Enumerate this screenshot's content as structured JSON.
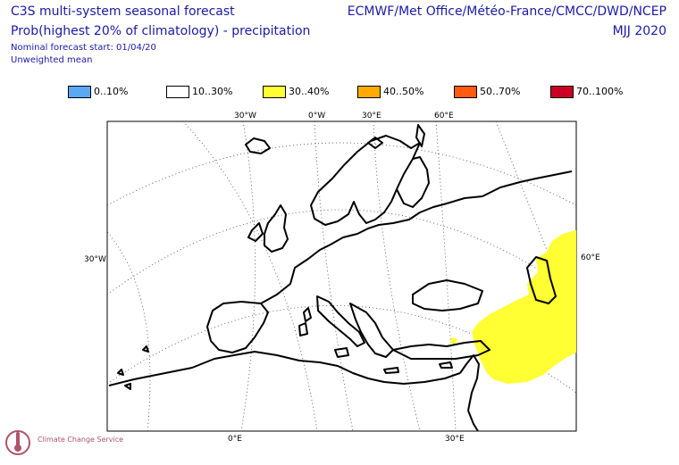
{
  "header": {
    "title_line1": "C3S multi-system seasonal forecast",
    "title_line2": "Prob(highest 20% of climatology) - precipitation",
    "nominal_start": "Nominal forecast start: 01/04/20",
    "mean_type": "Unweighted mean",
    "providers": "ECMWF/Met Office/Météo-France/CMCC/DWD/NCEP",
    "period": "MJJ 2020"
  },
  "legend": [
    {
      "label": "0..10%",
      "color": "#5aa9f5"
    },
    {
      "label": "10..30%",
      "color": "#ffffff"
    },
    {
      "label": "30..40%",
      "color": "#ffff33"
    },
    {
      "label": "40..50%",
      "color": "#ffaa00"
    },
    {
      "label": "50..70%",
      "color": "#ff5a10"
    },
    {
      "label": "70..100%",
      "color": "#cc0022"
    }
  ],
  "axes": {
    "top_labels": [
      "30°W",
      "0°W",
      "30°E",
      "60°E"
    ],
    "bottom_labels": [
      "0°E",
      "30°E"
    ],
    "left_label": "30°W",
    "right_label": "60°E"
  },
  "logo": {
    "name": "Climate Change Service",
    "icon": "thermometer-logo-icon"
  }
}
